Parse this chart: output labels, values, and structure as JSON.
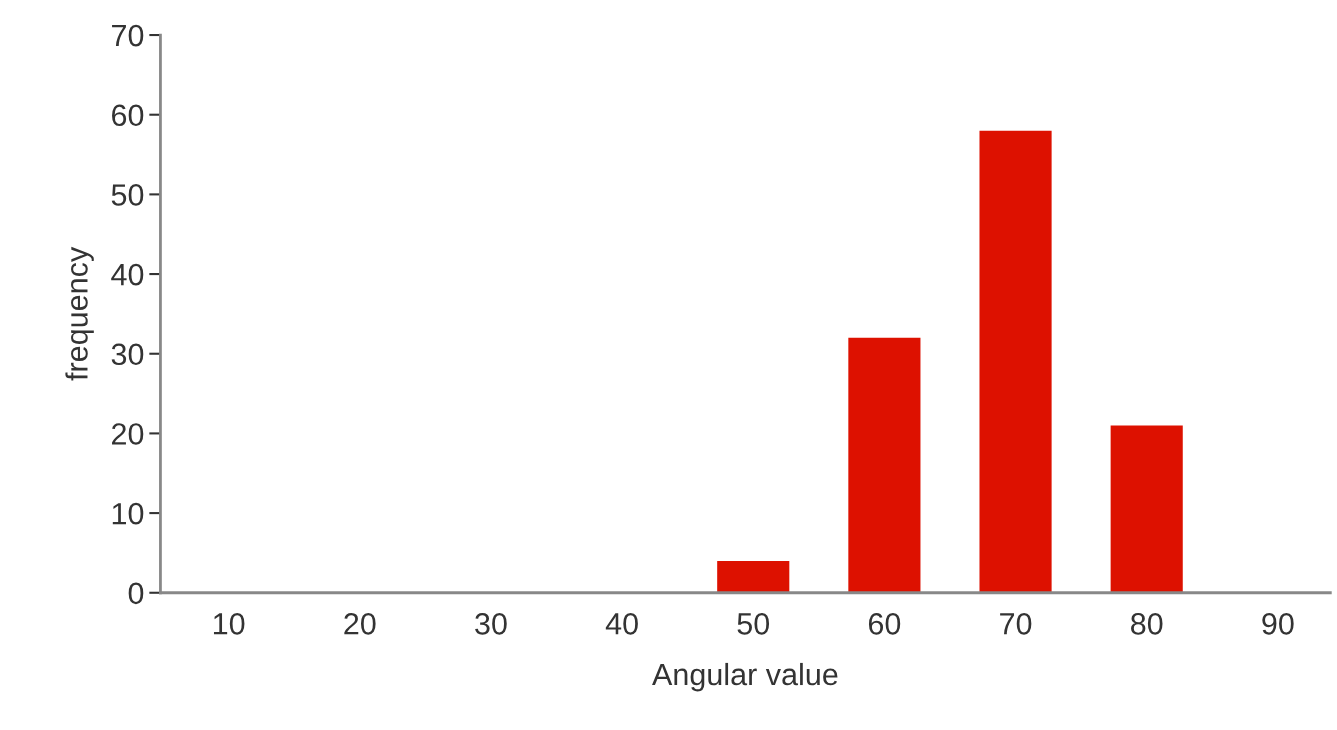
{
  "chart_data": {
    "type": "bar",
    "xlabel": "Angular value",
    "ylabel": "frequency",
    "categories": [
      "10",
      "20",
      "30",
      "40",
      "50",
      "60",
      "70",
      "80",
      "90"
    ],
    "values": [
      0,
      0,
      0,
      0,
      4,
      32,
      58,
      21,
      0
    ],
    "color": "#dd1100",
    "ylim": [
      0,
      70
    ],
    "yticks": [
      0,
      10,
      20,
      30,
      40,
      50,
      60,
      70
    ],
    "grid": false,
    "legend": false
  }
}
